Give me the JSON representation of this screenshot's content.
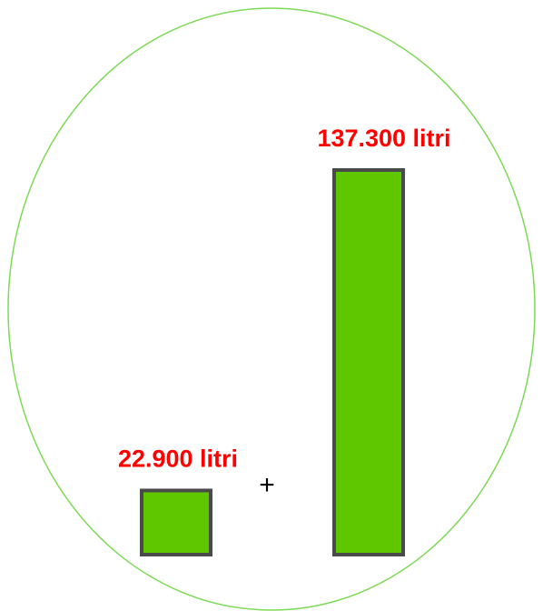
{
  "chart_data": {
    "type": "bar",
    "categories": [
      null,
      null
    ],
    "values": [
      22900,
      137300
    ],
    "value_labels": [
      "22.900 litri",
      "137.300 litri"
    ],
    "color": "#5fc700",
    "edge_color": "#4a4a4a",
    "label_color": "#ff0000",
    "annotation": "+"
  }
}
